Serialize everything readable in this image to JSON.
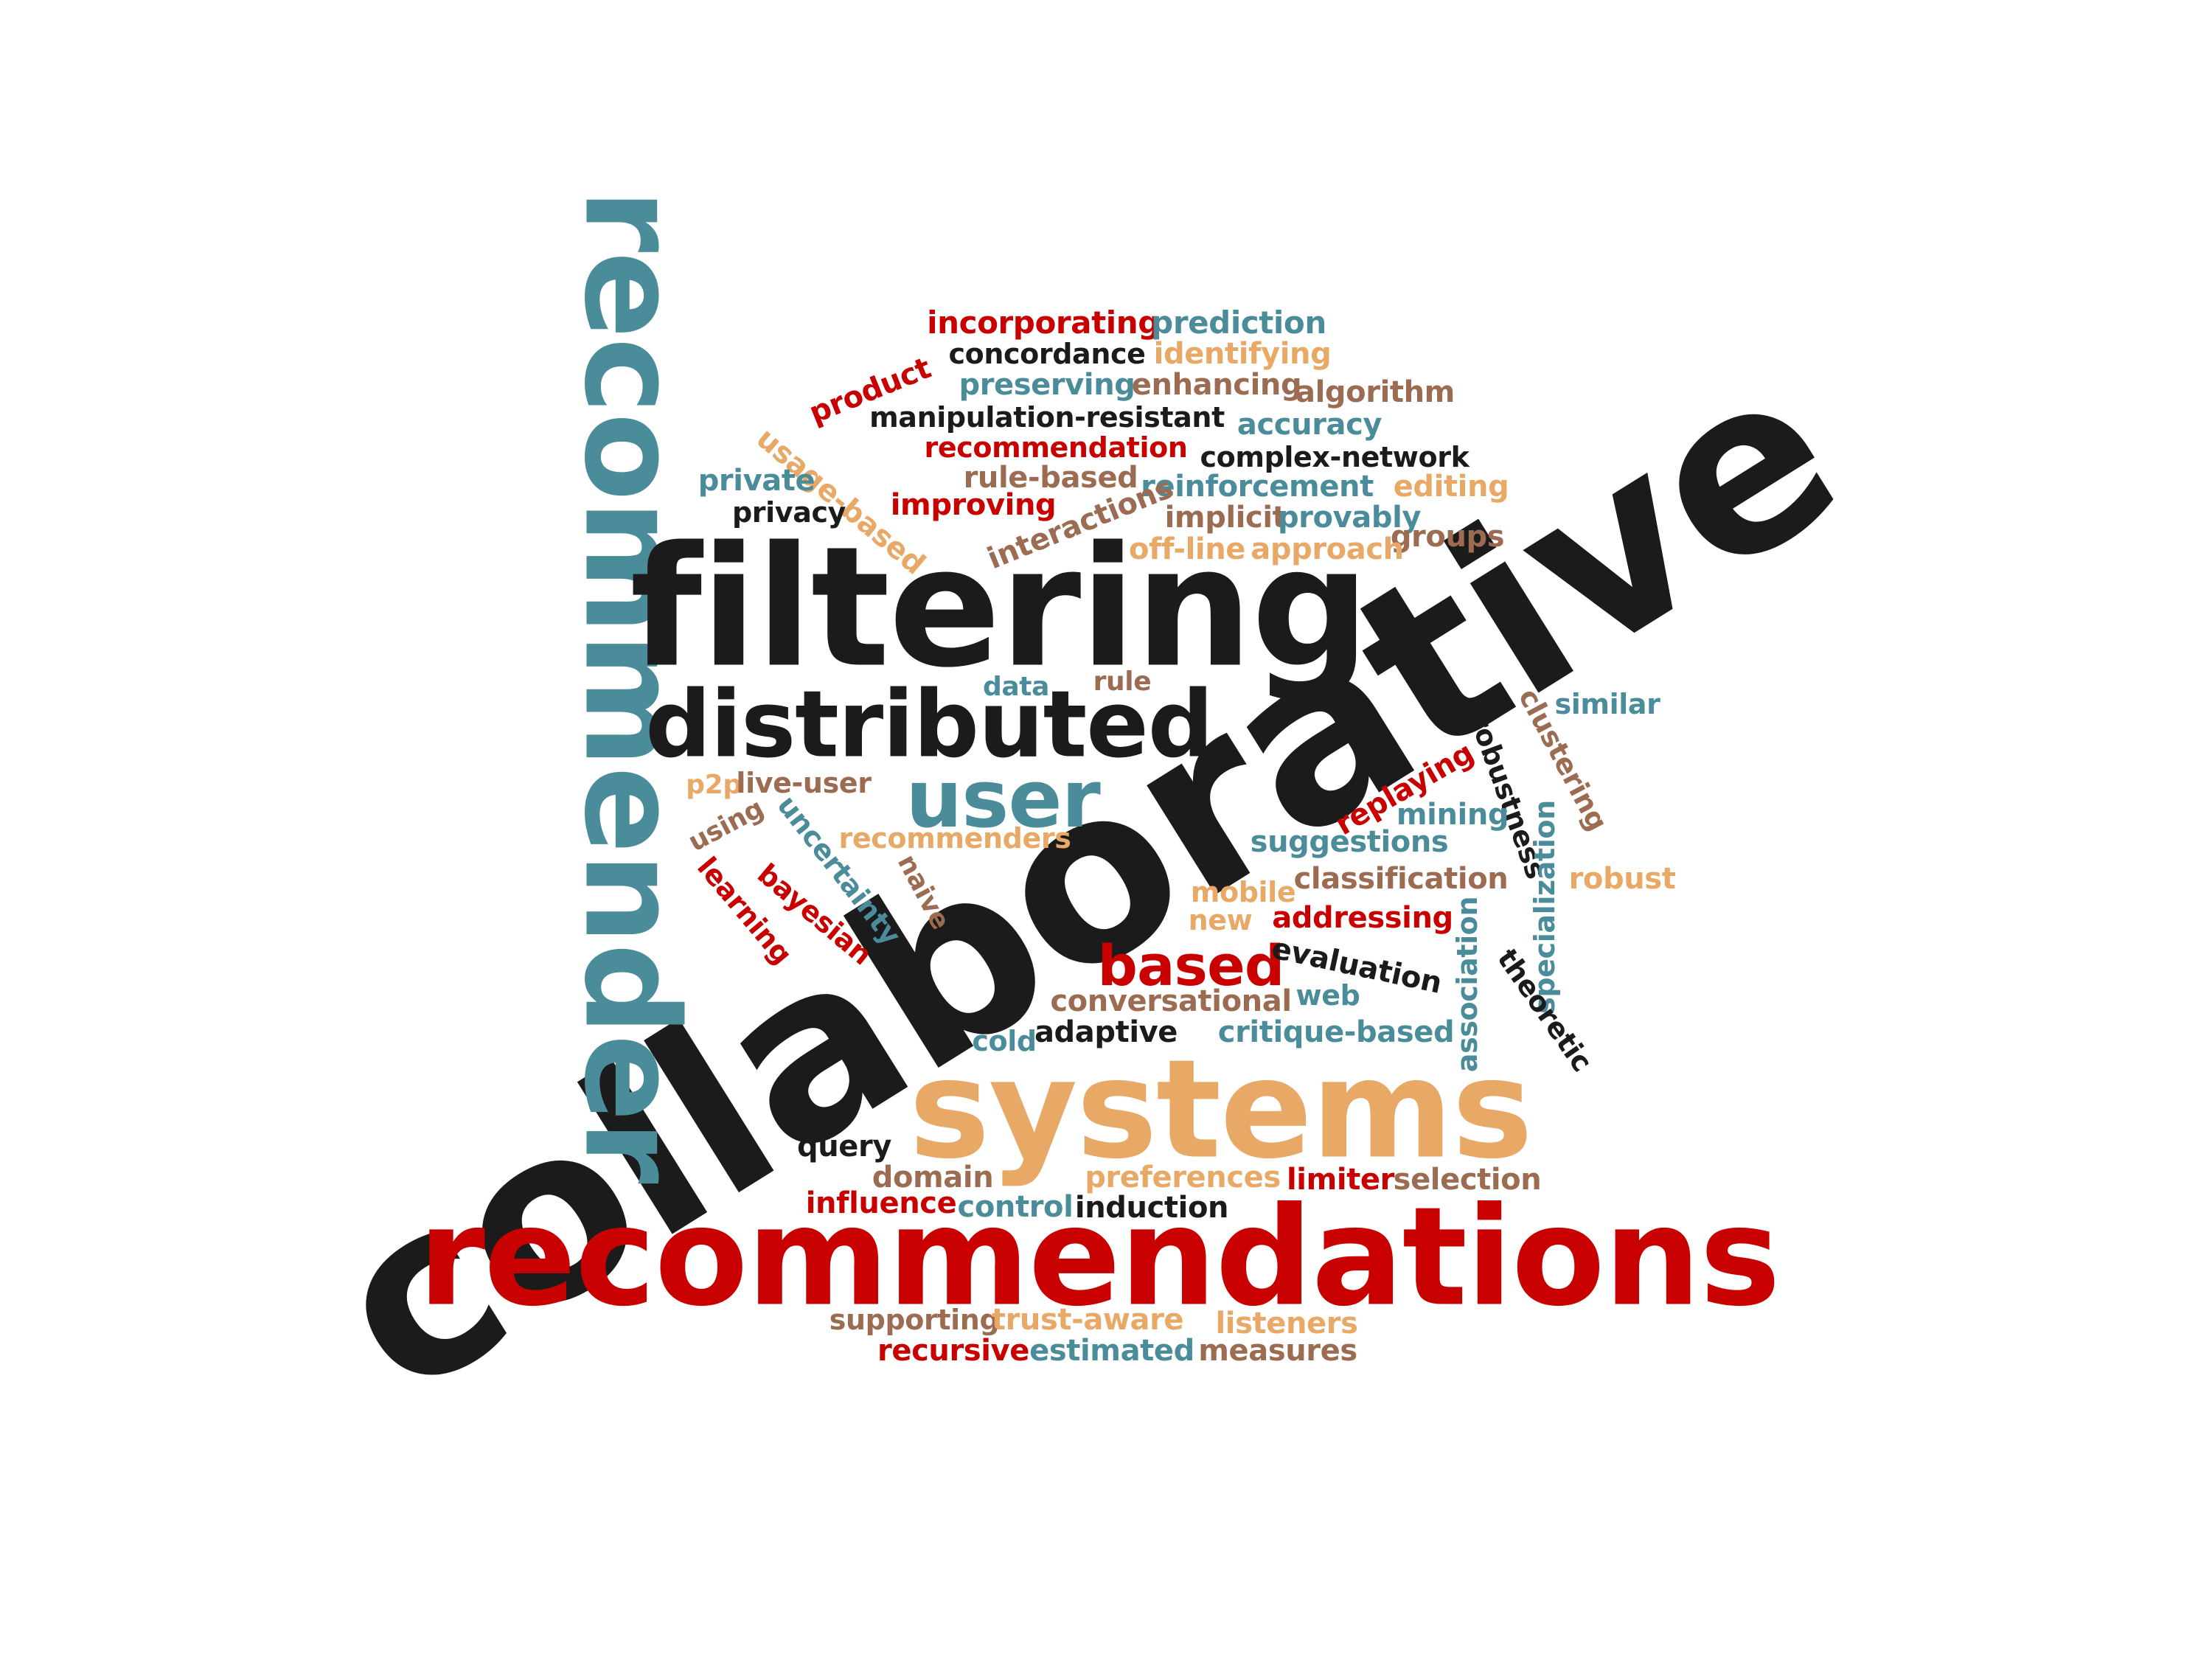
{
  "palette": {
    "black": "#1b1b1b",
    "teal": "#4a8c99",
    "orange": "#e8a866",
    "red": "#c90000",
    "brown": "#9c6c52"
  },
  "words": [
    {
      "text": "collaborative",
      "color": "black"
    },
    {
      "text": "recommendations",
      "color": "red"
    },
    {
      "text": "recommender",
      "color": "teal"
    },
    {
      "text": "filtering",
      "color": "black"
    },
    {
      "text": "systems",
      "color": "orange"
    },
    {
      "text": "distributed",
      "color": "black"
    },
    {
      "text": "user",
      "color": "teal"
    },
    {
      "text": "based",
      "color": "red"
    },
    {
      "text": "incorporating",
      "color": "red"
    },
    {
      "text": "prediction",
      "color": "teal"
    },
    {
      "text": "concordance",
      "color": "black"
    },
    {
      "text": "identifying",
      "color": "orange"
    },
    {
      "text": "product",
      "color": "red"
    },
    {
      "text": "preserving",
      "color": "teal"
    },
    {
      "text": "enhancing",
      "color": "brown"
    },
    {
      "text": "algorithm",
      "color": "brown"
    },
    {
      "text": "manipulation-resistant",
      "color": "black"
    },
    {
      "text": "accuracy",
      "color": "teal"
    },
    {
      "text": "usage-based",
      "color": "orange"
    },
    {
      "text": "recommendation",
      "color": "red"
    },
    {
      "text": "complex-network",
      "color": "black"
    },
    {
      "text": "private",
      "color": "teal"
    },
    {
      "text": "rule-based",
      "color": "brown"
    },
    {
      "text": "reinforcement",
      "color": "teal"
    },
    {
      "text": "editing",
      "color": "orange"
    },
    {
      "text": "privacy",
      "color": "black"
    },
    {
      "text": "improving",
      "color": "red"
    },
    {
      "text": "interactions",
      "color": "brown"
    },
    {
      "text": "implicit",
      "color": "brown"
    },
    {
      "text": "provably",
      "color": "teal"
    },
    {
      "text": "groups",
      "color": "brown"
    },
    {
      "text": "off-line",
      "color": "orange"
    },
    {
      "text": "approach",
      "color": "orange"
    },
    {
      "text": "data",
      "color": "teal"
    },
    {
      "text": "rule",
      "color": "brown"
    },
    {
      "text": "clustering",
      "color": "brown"
    },
    {
      "text": "similar",
      "color": "teal"
    },
    {
      "text": "robustness",
      "color": "black"
    },
    {
      "text": "p2p",
      "color": "orange"
    },
    {
      "text": "live-user",
      "color": "brown"
    },
    {
      "text": "replaying",
      "color": "red"
    },
    {
      "text": "mining",
      "color": "teal"
    },
    {
      "text": "using",
      "color": "brown"
    },
    {
      "text": "uncertainty",
      "color": "teal"
    },
    {
      "text": "recommenders",
      "color": "orange"
    },
    {
      "text": "suggestions",
      "color": "teal"
    },
    {
      "text": "specialization",
      "color": "teal"
    },
    {
      "text": "learning",
      "color": "red"
    },
    {
      "text": "bayesian",
      "color": "red"
    },
    {
      "text": "naive",
      "color": "brown"
    },
    {
      "text": "classification",
      "color": "brown"
    },
    {
      "text": "robust",
      "color": "orange"
    },
    {
      "text": "mobile",
      "color": "orange"
    },
    {
      "text": "new",
      "color": "orange"
    },
    {
      "text": "addressing",
      "color": "red"
    },
    {
      "text": "association",
      "color": "teal"
    },
    {
      "text": "evaluation",
      "color": "black"
    },
    {
      "text": "theoretic",
      "color": "black"
    },
    {
      "text": "web",
      "color": "teal"
    },
    {
      "text": "conversational",
      "color": "brown"
    },
    {
      "text": "cold",
      "color": "teal"
    },
    {
      "text": "adaptive",
      "color": "black"
    },
    {
      "text": "critique-based",
      "color": "teal"
    },
    {
      "text": "query",
      "color": "black"
    },
    {
      "text": "domain",
      "color": "brown"
    },
    {
      "text": "preferences",
      "color": "orange"
    },
    {
      "text": "limiter",
      "color": "red"
    },
    {
      "text": "selection",
      "color": "brown"
    },
    {
      "text": "influence",
      "color": "red"
    },
    {
      "text": "control",
      "color": "teal"
    },
    {
      "text": "induction",
      "color": "black"
    },
    {
      "text": "supporting",
      "color": "brown"
    },
    {
      "text": "trust-aware",
      "color": "orange"
    },
    {
      "text": "listeners",
      "color": "orange"
    },
    {
      "text": "recursive",
      "color": "red"
    },
    {
      "text": "estimated",
      "color": "teal"
    },
    {
      "text": "measures",
      "color": "brown"
    }
  ]
}
